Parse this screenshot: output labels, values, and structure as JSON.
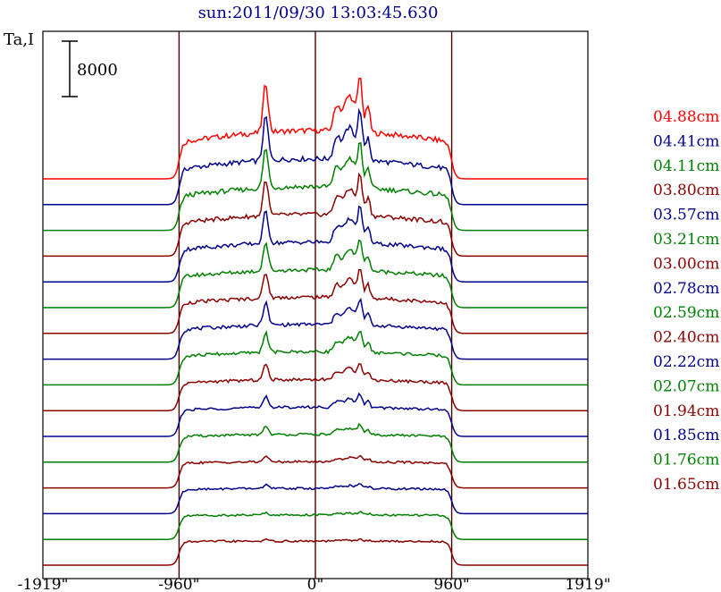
{
  "chart_data": {
    "type": "line",
    "title": "sun:2011/09/30 13:03:45.630",
    "ylabel": "Ta,I",
    "scale_bar_label": "8000",
    "x_ticks": [
      "-1919\"",
      "-960\"",
      "0\"",
      "960\"",
      "1919\""
    ],
    "x_tick_values": [
      -1919,
      -960,
      0,
      960,
      1919
    ],
    "xlim": [
      -1919,
      1919
    ],
    "vertical_lines": [
      -960,
      0,
      960
    ],
    "grid": false,
    "legend_position": "right",
    "series": [
      {
        "name": "04.88cm",
        "color": "#ff0000",
        "baseline_offset": 15,
        "peak_scale": 1.0
      },
      {
        "name": "04.41cm",
        "color": "#00008b",
        "baseline_offset": 14,
        "peak_scale": 0.9
      },
      {
        "name": "04.11cm",
        "color": "#008000",
        "baseline_offset": 13,
        "peak_scale": 0.82
      },
      {
        "name": "03.80cm",
        "color": "#8b0000",
        "baseline_offset": 12,
        "peak_scale": 0.74
      },
      {
        "name": "03.57cm",
        "color": "#00008b",
        "baseline_offset": 11,
        "peak_scale": 0.66
      },
      {
        "name": "03.21cm",
        "color": "#008000",
        "baseline_offset": 10,
        "peak_scale": 0.58
      },
      {
        "name": "03.00cm",
        "color": "#8b0000",
        "baseline_offset": 9,
        "peak_scale": 0.52
      },
      {
        "name": "02.78cm",
        "color": "#00008b",
        "baseline_offset": 8,
        "peak_scale": 0.46
      },
      {
        "name": "02.59cm",
        "color": "#008000",
        "baseline_offset": 7,
        "peak_scale": 0.4
      },
      {
        "name": "02.40cm",
        "color": "#8b0000",
        "baseline_offset": 6,
        "peak_scale": 0.32
      },
      {
        "name": "02.22cm",
        "color": "#00008b",
        "baseline_offset": 5,
        "peak_scale": 0.24
      },
      {
        "name": "02.07cm",
        "color": "#008000",
        "baseline_offset": 4,
        "peak_scale": 0.18
      },
      {
        "name": "01.94cm",
        "color": "#8b0000",
        "baseline_offset": 3,
        "peak_scale": 0.12
      },
      {
        "name": "01.85cm",
        "color": "#00008b",
        "baseline_offset": 2,
        "peak_scale": 0.08
      },
      {
        "name": "01.76cm",
        "color": "#008000",
        "baseline_offset": 1,
        "peak_scale": 0.05
      },
      {
        "name": "01.65cm",
        "color": "#8b0000",
        "baseline_offset": 0,
        "peak_scale": 0.03
      }
    ]
  }
}
